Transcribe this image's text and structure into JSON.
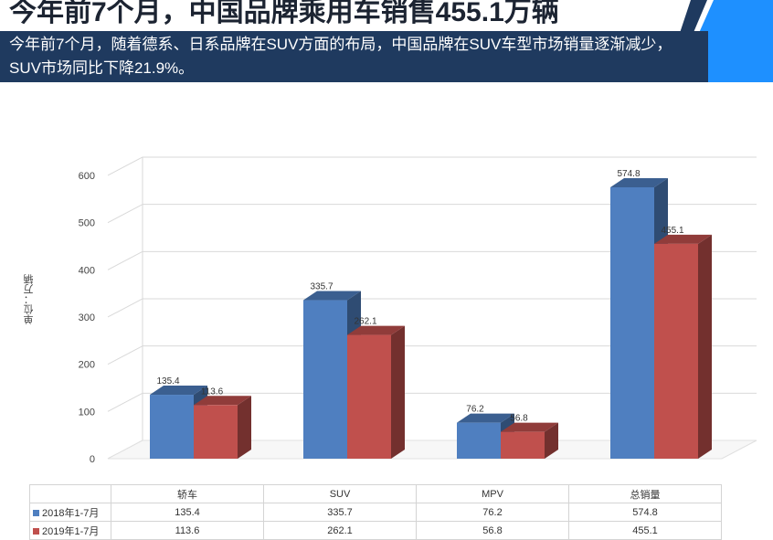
{
  "header": {
    "title": "今年前7个月，中国品牌乘用车销售455.1万辆",
    "subtitle": "今年前7个月，随着德系、日系品牌在SUV方面的布局，中国品牌在SUV车型市场销量逐渐减少，SUV市场同比下降21.9%。"
  },
  "colors": {
    "series1": "#4f7fc0",
    "series2": "#c0504d",
    "navy": "#1f3a5f",
    "accent": "#1e90ff"
  },
  "chart_data": {
    "type": "bar",
    "ylabel": "单位：万辆",
    "ylim": [
      0,
      600
    ],
    "yticks": [
      "0",
      "100",
      "200",
      "300",
      "400",
      "500",
      "600"
    ],
    "categories": [
      "轿车",
      "SUV",
      "MPV",
      "总销量"
    ],
    "series": [
      {
        "name": "2018年1-7月",
        "values": [
          135.4,
          335.7,
          76.2,
          574.8
        ],
        "labels": [
          "135.4",
          "335.7",
          "76.2",
          "574.8"
        ]
      },
      {
        "name": "2019年1-7月",
        "values": [
          113.6,
          262.1,
          56.8,
          455.1
        ],
        "labels": [
          "113.6",
          "262.1",
          "56.8",
          "455.1"
        ]
      }
    ],
    "grid": true
  }
}
